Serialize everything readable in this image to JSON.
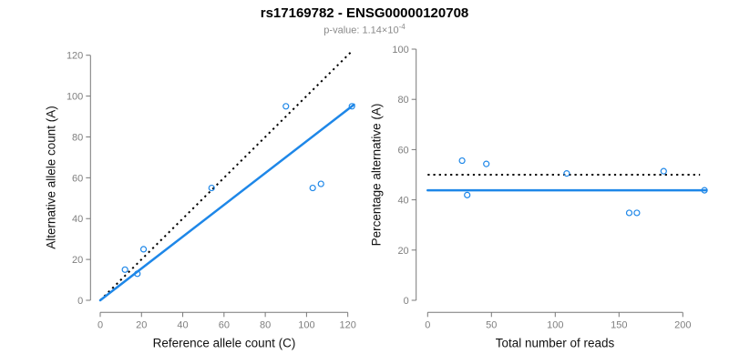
{
  "title": "rs17169782 - ENSG00000120708",
  "subtitle": {
    "text": "p-value: 1.14×10",
    "exponent": "-4"
  },
  "colors": {
    "accent_blue": "#1E87E8",
    "dotted_black": "#000000",
    "tick_text_gray": "#7f7f7f",
    "axis_gray": "#787878",
    "subtitle_gray": "#8a8a8a"
  },
  "chart_data": [
    {
      "type": "scatter",
      "panel": "left",
      "xlabel": "Reference allele count (C)",
      "ylabel": "Alternative allele count (A)",
      "xlim": [
        0,
        127
      ],
      "ylim": [
        0,
        127
      ],
      "xticks": [
        0,
        20,
        40,
        60,
        80,
        100,
        120
      ],
      "yticks": [
        0,
        20,
        40,
        60,
        80,
        100,
        120
      ],
      "grid": false,
      "points": [
        [
          12,
          15
        ],
        [
          18,
          13
        ],
        [
          21,
          25
        ],
        [
          54,
          55
        ],
        [
          90,
          95
        ],
        [
          103,
          55
        ],
        [
          107,
          57
        ],
        [
          122,
          95
        ]
      ],
      "lines": [
        {
          "name": "identity-line",
          "style": "dotted",
          "color": "black",
          "x1": 0,
          "y1": 0,
          "x2": 122.5,
          "y2": 122.5
        },
        {
          "name": "regression-line",
          "style": "solid",
          "color": "blue",
          "x1": 0,
          "y1": 0,
          "x2": 123,
          "y2": 95.8
        }
      ]
    },
    {
      "type": "scatter",
      "panel": "right",
      "xlabel": "Total number of reads",
      "ylabel": "Percentage alternative (A)",
      "xlim": [
        0,
        226
      ],
      "ylim": [
        0,
        100
      ],
      "xticks": [
        0,
        50,
        100,
        150,
        200
      ],
      "yticks": [
        0,
        20,
        40,
        60,
        80,
        100
      ],
      "grid": false,
      "points": [
        [
          27,
          55.6
        ],
        [
          31,
          41.9
        ],
        [
          46,
          54.3
        ],
        [
          109,
          50.5
        ],
        [
          158,
          34.8
        ],
        [
          164,
          34.8
        ],
        [
          185,
          51.4
        ],
        [
          217,
          43.8
        ]
      ],
      "lines": [
        {
          "name": "null-expectation-line",
          "style": "dotted",
          "color": "black",
          "x1": 0,
          "y1": 50,
          "x2": 213.5,
          "y2": 50
        },
        {
          "name": "mean-percentage-line",
          "style": "solid",
          "color": "blue",
          "x1": 0,
          "y1": 43.8,
          "x2": 218.5,
          "y2": 43.8
        }
      ]
    }
  ]
}
